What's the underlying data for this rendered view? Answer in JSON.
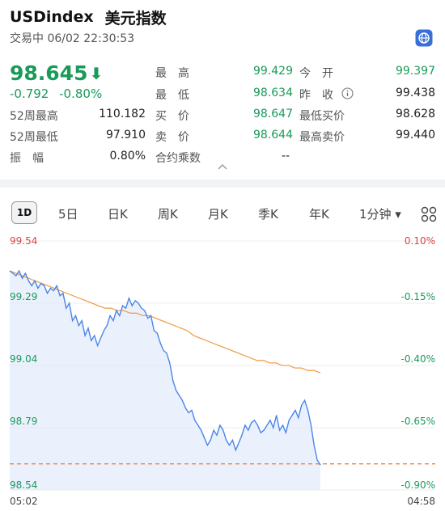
{
  "header": {
    "symbol": "USDindex",
    "name": "美元指数"
  },
  "status": {
    "text": "交易中 06/02 22:30:53"
  },
  "icons": {
    "globe": "globe-icon",
    "down_arrow": "down-arrow-icon",
    "collapse": "chevron-up-icon",
    "grid": "grid-icon"
  },
  "colors": {
    "down": "#1a9a5a",
    "up": "#e04040",
    "line": "#4a86e8",
    "avg": "#f0a050",
    "ref": "#f08040"
  },
  "quote": {
    "price": "98.645",
    "arrow": "⬇",
    "change": "-0.792",
    "change_pct": "-0.80%"
  },
  "stats": {
    "w52_high_label": "52周最高",
    "w52_high": "110.182",
    "w52_low_label": "52周最低",
    "w52_low": "97.910",
    "amp_label": "振　幅",
    "amp": "0.80%",
    "high_label": "最　高",
    "high": "99.429",
    "low_label": "最　低",
    "low": "98.634",
    "bid_label": "买　价",
    "bid": "98.647",
    "ask_label": "卖　价",
    "ask": "98.644",
    "mult_label": "合约乘数",
    "mult": "--",
    "open_label": "今　开",
    "open": "99.397",
    "prev_label": "昨　收",
    "prev": "99.438",
    "min_bid_label": "最低买价",
    "min_bid": "98.628",
    "max_ask_label": "最高卖价",
    "max_ask": "99.440"
  },
  "tabs": {
    "t1": "1D",
    "t2": "5日",
    "t3": "日K",
    "t4": "周K",
    "t5": "月K",
    "t6": "季K",
    "t7": "年K",
    "t8": "1分钟 ▾"
  },
  "chart_data": {
    "type": "line",
    "y_left_ticks": [
      "99.54",
      "99.29",
      "99.04",
      "98.79",
      "98.54"
    ],
    "y_right_ticks": [
      "0.10%",
      "-0.15%",
      "-0.40%",
      "-0.65%",
      "-0.90%"
    ],
    "x_labels": [
      "05:02",
      "04:58"
    ],
    "ylim": [
      98.54,
      99.54
    ],
    "prev_close": 99.438,
    "reference": 98.645,
    "series": [
      {
        "values": [
          99.42,
          99.41,
          99.4,
          99.42,
          99.39,
          99.41,
          99.38,
          99.36,
          99.38,
          99.35,
          99.37,
          99.36,
          99.33,
          99.35,
          99.34,
          99.36,
          99.32,
          99.33,
          99.27,
          99.29,
          99.22,
          99.24,
          99.2,
          99.22,
          99.16,
          99.19,
          99.14,
          99.16,
          99.12,
          99.15,
          99.18,
          99.2,
          99.24,
          99.22,
          99.26,
          99.24,
          99.28,
          99.27,
          99.31,
          99.28,
          99.3,
          99.29,
          99.27,
          99.26,
          99.23,
          99.24,
          99.18,
          99.17,
          99.13,
          99.1,
          99.09,
          99.05,
          98.98,
          98.94,
          98.92,
          98.9,
          98.87,
          98.85,
          98.86,
          98.82,
          98.8,
          98.78,
          98.75,
          98.72,
          98.74,
          98.78,
          98.76,
          98.8,
          98.78,
          98.74,
          98.72,
          98.74,
          98.7,
          98.73,
          98.76,
          98.8,
          98.78,
          98.81,
          98.82,
          98.8,
          98.77,
          98.78,
          98.8,
          98.82,
          98.79,
          98.84,
          98.78,
          98.8,
          98.77,
          98.82,
          98.84,
          98.86,
          98.83,
          98.88,
          98.9,
          98.86,
          98.8,
          98.72,
          98.66,
          98.64
        ]
      },
      {
        "values": [
          99.42,
          99.41,
          99.4,
          99.39,
          99.38,
          99.37,
          99.36,
          99.35,
          99.34,
          99.33,
          99.32,
          99.31,
          99.3,
          99.29,
          99.28,
          99.27,
          99.27,
          99.26,
          99.26,
          99.25,
          99.25,
          99.24,
          99.24,
          99.23,
          99.22,
          99.21,
          99.2,
          99.19,
          99.18,
          99.16,
          99.15,
          99.14,
          99.13,
          99.12,
          99.11,
          99.1,
          99.09,
          99.08,
          99.07,
          99.06,
          99.06,
          99.05,
          99.05,
          99.04,
          99.04,
          99.03,
          99.03,
          99.02,
          99.02,
          99.01
        ]
      }
    ]
  }
}
